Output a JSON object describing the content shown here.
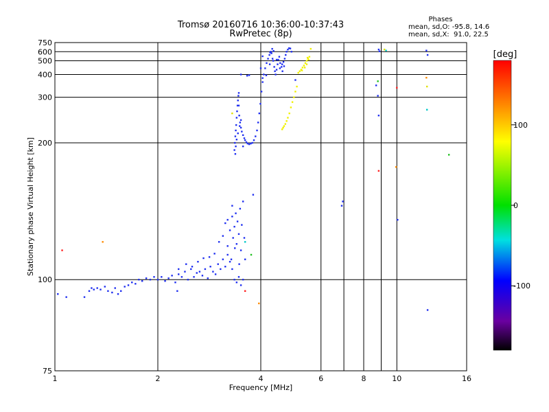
{
  "chart_data": {
    "type": "scatter",
    "title": "Tromsø 20160716 10:36:00-10:37:43",
    "subtitle": "RwPretec (8p)",
    "xlabel": "Frequency [MHz]",
    "ylabel": "Stationary phase Virtual Height [km]",
    "x_scale": "log",
    "y_scale": "reciprocal",
    "xlim": [
      1,
      16
    ],
    "ylim": [
      75,
      750
    ],
    "x_ticks": [
      "1",
      "2",
      "4",
      "6",
      "8",
      "10",
      "16"
    ],
    "x_tick_values": [
      1,
      2,
      4,
      6,
      8,
      10,
      16
    ],
    "x_grid_values": [
      2,
      4,
      6,
      7,
      8,
      9,
      10
    ],
    "y_ticks": [
      "750",
      "600",
      "500",
      "400",
      "300",
      "200",
      "100",
      "75"
    ],
    "y_tick_values": [
      750,
      600,
      500,
      400,
      300,
      200,
      100,
      75
    ],
    "grid": true,
    "stats": {
      "heading": "Phases",
      "line1": "mean, sd,O: -95.8, 14.6",
      "line2": "mean, sd,X:  91.0, 22.5"
    },
    "colorbar": {
      "label": "[deg]",
      "range": [
        -180,
        180
      ],
      "ticks": [
        "100",
        "0",
        "-100"
      ],
      "tick_values": [
        100,
        0,
        -100
      ]
    },
    "colors": {
      "o_trace": "#1f2ff0",
      "x_trace": "#f0f000",
      "grid": "#000000"
    },
    "series": [
      {
        "trace": "low-E-region",
        "phase": -100,
        "points": [
          [
            1.02,
            95
          ],
          [
            1.08,
            94
          ],
          [
            1.22,
            94
          ],
          [
            1.26,
            96
          ],
          [
            1.28,
            97
          ],
          [
            1.3,
            96.5
          ],
          [
            1.33,
            97
          ],
          [
            1.36,
            96.5
          ],
          [
            1.4,
            97.5
          ],
          [
            1.43,
            96
          ],
          [
            1.47,
            95.5
          ],
          [
            1.5,
            97
          ],
          [
            1.53,
            95
          ],
          [
            1.56,
            96
          ],
          [
            1.6,
            97.5
          ],
          [
            1.64,
            98
          ],
          [
            1.68,
            99
          ],
          [
            1.72,
            98.5
          ],
          [
            1.76,
            100
          ],
          [
            1.8,
            99.5
          ],
          [
            1.85,
            100.5
          ],
          [
            1.9,
            100
          ],
          [
            1.95,
            101
          ],
          [
            2.0,
            100
          ],
          [
            2.05,
            101
          ],
          [
            2.1,
            99.5
          ],
          [
            2.15,
            100.5
          ],
          [
            2.2,
            101.5
          ],
          [
            2.25,
            99
          ],
          [
            2.3,
            102
          ],
          [
            2.35,
            101
          ],
          [
            2.4,
            103
          ],
          [
            2.45,
            100
          ],
          [
            2.5,
            104
          ],
          [
            2.55,
            101
          ],
          [
            2.6,
            102.5
          ],
          [
            2.65,
            103
          ],
          [
            2.7,
            101.5
          ],
          [
            2.75,
            104
          ],
          [
            2.8,
            100.5
          ],
          [
            2.85,
            105
          ],
          [
            2.9,
            103
          ],
          [
            2.95,
            102
          ],
          [
            3.0,
            106
          ],
          [
            3.05,
            104
          ],
          [
            3.1,
            108
          ],
          [
            3.15,
            105
          ],
          [
            3.2,
            110
          ],
          [
            3.25,
            107
          ],
          [
            3.3,
            104
          ],
          [
            3.35,
            100
          ],
          [
            3.4,
            99
          ],
          [
            3.45,
            101
          ],
          [
            3.5,
            98
          ],
          [
            3.55,
            100
          ],
          [
            2.28,
            96
          ],
          [
            2.42,
            106
          ],
          [
            2.62,
            107
          ],
          [
            2.72,
            108.5
          ],
          [
            2.83,
            109
          ],
          [
            2.93,
            110.5
          ],
          [
            2.3,
            104
          ],
          [
            2.52,
            105
          ]
        ]
      },
      {
        "trace": "E-scatter",
        "phase": -100,
        "points": [
          [
            3.15,
            126
          ],
          [
            3.2,
            128
          ],
          [
            3.25,
            122
          ],
          [
            3.3,
            130
          ],
          [
            3.32,
            118
          ],
          [
            3.35,
            124
          ],
          [
            3.38,
            132
          ],
          [
            3.4,
            115
          ],
          [
            3.42,
            127
          ],
          [
            3.45,
            120
          ],
          [
            3.48,
            135
          ],
          [
            3.5,
            112
          ],
          [
            3.52,
            125
          ],
          [
            3.55,
            140
          ],
          [
            3.58,
            118
          ],
          [
            3.6,
            108
          ],
          [
            3.28,
            108
          ],
          [
            3.36,
            113
          ],
          [
            3.46,
            106
          ],
          [
            3.3,
            137
          ],
          [
            3.2,
            114
          ],
          [
            3.1,
            119
          ],
          [
            3.02,
            116
          ]
        ]
      },
      {
        "trace": "F-O-mode",
        "phase": -100,
        "points": [
          [
            3.35,
            190
          ],
          [
            3.36,
            200
          ],
          [
            3.37,
            210
          ],
          [
            3.38,
            220
          ],
          [
            3.39,
            230
          ],
          [
            3.4,
            245
          ],
          [
            3.41,
            260
          ],
          [
            3.42,
            275
          ],
          [
            3.43,
            290
          ],
          [
            3.44,
            305
          ],
          [
            3.45,
            275
          ],
          [
            3.46,
            250
          ],
          [
            3.48,
            235
          ],
          [
            3.5,
            225
          ],
          [
            3.52,
            218
          ],
          [
            3.55,
            212
          ],
          [
            3.58,
            207
          ],
          [
            3.6,
            204
          ],
          [
            3.63,
            201
          ],
          [
            3.66,
            199
          ],
          [
            3.7,
            198
          ],
          [
            3.74,
            199
          ],
          [
            3.78,
            200
          ],
          [
            3.82,
            204
          ],
          [
            3.86,
            210
          ],
          [
            3.9,
            220
          ],
          [
            3.93,
            235
          ],
          [
            3.96,
            255
          ],
          [
            3.99,
            280
          ],
          [
            4.02,
            320
          ],
          [
            4.05,
            360
          ],
          [
            4.08,
            400
          ],
          [
            4.12,
            440
          ],
          [
            4.16,
            480
          ],
          [
            4.2,
            520
          ],
          [
            4.24,
            560
          ],
          [
            4.28,
            600
          ],
          [
            4.32,
            640
          ],
          [
            4.3,
            580
          ],
          [
            4.35,
            500
          ],
          [
            4.38,
            450
          ],
          [
            4.4,
            420
          ],
          [
            4.42,
            400
          ],
          [
            4.45,
            430
          ],
          [
            4.48,
            470
          ],
          [
            4.5,
            510
          ],
          [
            4.53,
            540
          ],
          [
            4.56,
            480
          ],
          [
            4.6,
            450
          ],
          [
            4.63,
            420
          ],
          [
            4.66,
            490
          ],
          [
            4.7,
            520
          ],
          [
            4.73,
            560
          ],
          [
            4.76,
            600
          ],
          [
            4.8,
            630
          ],
          [
            4.84,
            650
          ],
          [
            4.88,
            645
          ],
          [
            4.92,
            600
          ],
          [
            3.38,
            195
          ],
          [
            3.4,
            205
          ],
          [
            3.43,
            215
          ],
          [
            3.47,
            228
          ],
          [
            3.5,
            240
          ],
          [
            3.37,
            185
          ],
          [
            3.55,
            195
          ],
          [
            3.45,
            315
          ],
          [
            3.5,
            400
          ],
          [
            3.65,
            393
          ],
          [
            3.7,
            396
          ],
          [
            4.0,
            440
          ],
          [
            4.05,
            380
          ],
          [
            4.15,
            395
          ],
          [
            4.25,
            470
          ],
          [
            4.33,
            520
          ],
          [
            4.45,
            510
          ],
          [
            4.55,
            440
          ],
          [
            4.62,
            470
          ],
          [
            4.68,
            455
          ],
          [
            4.26,
            590
          ],
          [
            4.36,
            610
          ]
        ]
      },
      {
        "trace": "F-X-mode",
        "phase": 100,
        "points": [
          [
            4.62,
            222
          ],
          [
            4.65,
            225
          ],
          [
            4.68,
            228
          ],
          [
            4.72,
            232
          ],
          [
            4.76,
            238
          ],
          [
            4.8,
            245
          ],
          [
            4.85,
            255
          ],
          [
            4.9,
            270
          ],
          [
            4.95,
            285
          ],
          [
            5.0,
            300
          ],
          [
            5.05,
            320
          ],
          [
            5.1,
            340
          ],
          [
            5.15,
            410
          ],
          [
            5.2,
            420
          ],
          [
            5.25,
            430
          ],
          [
            5.3,
            445
          ],
          [
            5.35,
            460
          ],
          [
            5.4,
            480
          ],
          [
            5.45,
            500
          ],
          [
            5.5,
            520
          ],
          [
            5.55,
            540
          ],
          [
            5.45,
            470
          ],
          [
            5.38,
            445
          ],
          [
            5.28,
            425
          ],
          [
            5.6,
            640
          ],
          [
            5.52,
            510
          ],
          [
            5.48,
            530
          ]
        ]
      },
      {
        "trace": "isolated",
        "phase": -100,
        "points": [
          [
            6.9,
            137
          ],
          [
            6.95,
            140
          ],
          [
            8.7,
            345
          ],
          [
            8.8,
            305
          ],
          [
            8.85,
            250
          ],
          [
            8.85,
            630
          ],
          [
            8.9,
            605
          ],
          [
            10.05,
            128
          ],
          [
            12.2,
            615
          ],
          [
            12.3,
            560
          ],
          [
            12.3,
            90
          ],
          [
            5.05,
            370
          ],
          [
            3.8,
            145
          ],
          [
            4.05,
            545
          ]
        ]
      },
      {
        "trace": "isolated-other",
        "phase": 150,
        "points": [
          [
            1.05,
            112
          ],
          [
            1.38,
            116
          ],
          [
            9.2,
            630
          ],
          [
            9.3,
            615
          ],
          [
            8.8,
            364
          ],
          [
            8.85,
            166
          ],
          [
            12.2,
            382
          ],
          [
            12.25,
            340
          ],
          [
            12.25,
            264
          ],
          [
            14.2,
            184
          ],
          [
            10.0,
            335
          ],
          [
            9.95,
            170
          ],
          [
            3.3,
            255
          ],
          [
            3.6,
            116
          ],
          [
            3.75,
            110
          ],
          [
            3.6,
            96
          ],
          [
            3.95,
            92
          ]
        ]
      }
    ]
  }
}
